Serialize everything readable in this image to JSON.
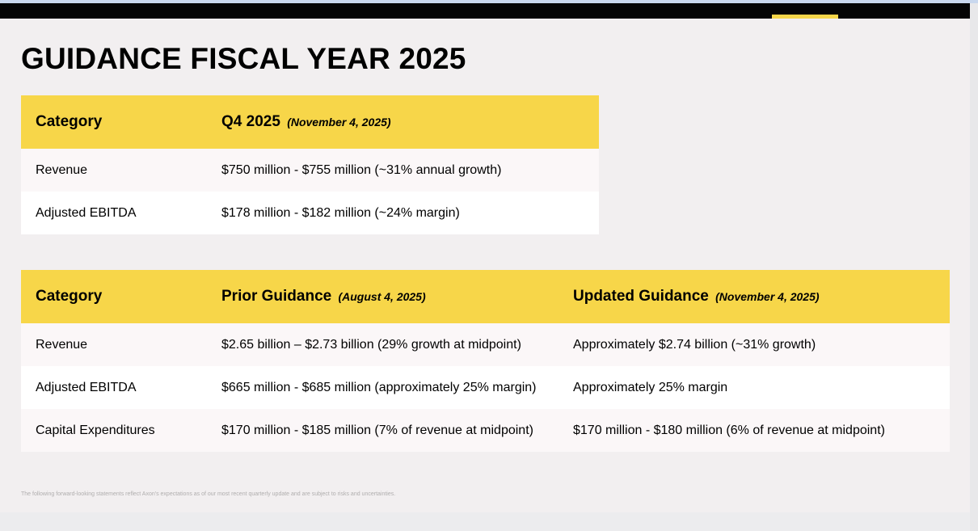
{
  "title": "GUIDANCE FISCAL YEAR 2025",
  "q4_table": {
    "headers": {
      "category": "Category",
      "period": "Q4 2025",
      "period_date": "(November 4, 2025)"
    },
    "rows": [
      {
        "category": "Revenue",
        "value": "$750 million - $755 million (~31% annual growth)"
      },
      {
        "category": "Adjusted EBITDA",
        "value": "$178 million - $182 million (~24% margin)"
      }
    ]
  },
  "fy_table": {
    "headers": {
      "category": "Category",
      "prior": "Prior Guidance",
      "prior_date": "(August 4, 2025)",
      "updated": "Updated Guidance",
      "updated_date": "(November 4, 2025)"
    },
    "rows": [
      {
        "category": "Revenue",
        "prior": "$2.65 billion – $2.73 billion (29% growth at midpoint)",
        "updated": "Approximately $2.74 billion (~31% growth)"
      },
      {
        "category": "Adjusted EBITDA",
        "prior": "$665 million - $685 million (approximately 25% margin)",
        "updated": "Approximately 25% margin"
      },
      {
        "category": "Capital Expenditures",
        "prior": "$170 million - $185 million (7% of revenue at midpoint)",
        "updated": "$170 million - $180 million (6% of revenue at midpoint)"
      }
    ]
  },
  "footnote": "The following forward-looking statements reflect Axon's expectations as of our most recent quarterly update and are subject to risks and uncertainties.",
  "colors": {
    "header_yellow": "#f7d649",
    "top_bar": "#050505",
    "slide_bg": "#f2eff0"
  }
}
